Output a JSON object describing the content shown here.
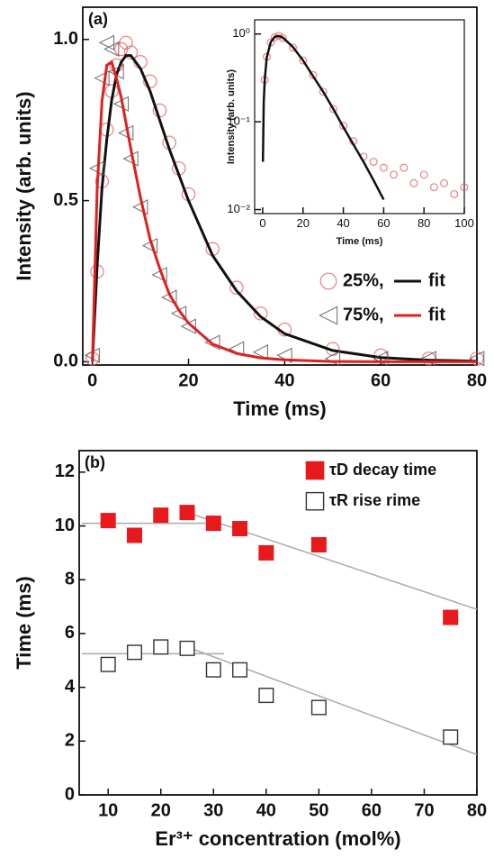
{
  "chart_data": [
    {
      "type": "line",
      "annotation": "(a)",
      "xlabel": "Time (ms)",
      "ylabel": "Intensity (arb. units)",
      "xlim": [
        -2,
        80
      ],
      "ylim": [
        -0.01,
        1.1
      ],
      "xticks": [
        0,
        20,
        40,
        60,
        80
      ],
      "yticks": [
        {
          "value": 0,
          "label": "0.0"
        },
        {
          "value": 0.5,
          "label": "0.5"
        },
        {
          "value": 1,
          "label": "1.0"
        }
      ],
      "legend": "lower right",
      "series": [
        {
          "name": "25%,",
          "color": "#e8605e",
          "marker": "circle",
          "x": [
            0,
            1,
            2,
            3,
            4,
            5,
            6,
            7,
            8,
            10,
            12,
            14,
            16,
            18,
            20,
            25,
            30,
            35,
            40,
            50,
            60,
            70,
            80
          ],
          "values": [
            0.01,
            0.28,
            0.56,
            0.72,
            0.84,
            0.92,
            0.97,
            0.99,
            0.96,
            0.93,
            0.87,
            0.78,
            0.68,
            0.6,
            0.52,
            0.35,
            0.23,
            0.15,
            0.1,
            0.04,
            0.02,
            0.01,
            0.01
          ]
        },
        {
          "name": "fit",
          "color": "#111111",
          "x": [
            0,
            1,
            2,
            3,
            4,
            5,
            6,
            7,
            8,
            10,
            12,
            14,
            16,
            18,
            20,
            25,
            30,
            35,
            40,
            50,
            60,
            70,
            80
          ],
          "values": [
            0,
            0.3,
            0.54,
            0.69,
            0.81,
            0.89,
            0.93,
            0.95,
            0.95,
            0.91,
            0.84,
            0.75,
            0.66,
            0.58,
            0.5,
            0.33,
            0.22,
            0.14,
            0.087,
            0.035,
            0.013,
            0.005,
            0.002
          ]
        },
        {
          "name": "75%,",
          "color": "#555555",
          "marker": "triangle",
          "x": [
            0,
            1,
            2,
            3,
            4,
            5,
            6,
            7,
            8,
            10,
            12,
            14,
            16,
            18,
            20,
            25,
            30,
            35,
            40,
            50,
            60,
            70,
            80
          ],
          "values": [
            0.02,
            0.6,
            0.88,
            0.99,
            0.97,
            0.9,
            0.8,
            0.71,
            0.63,
            0.48,
            0.36,
            0.27,
            0.2,
            0.15,
            0.11,
            0.06,
            0.04,
            0.03,
            0.02,
            0.01,
            0.01,
            0.01,
            0.01
          ]
        },
        {
          "name": "fit",
          "color": "#e02020",
          "x": [
            0,
            1,
            2,
            3,
            4,
            5,
            6,
            7,
            8,
            10,
            12,
            14,
            16,
            18,
            20,
            25,
            30,
            35,
            40,
            50,
            60,
            70,
            80
          ],
          "values": [
            0,
            0.54,
            0.81,
            0.92,
            0.93,
            0.88,
            0.82,
            0.74,
            0.66,
            0.51,
            0.38,
            0.29,
            0.21,
            0.16,
            0.12,
            0.055,
            0.026,
            0.012,
            0.006,
            0.001,
            0,
            0,
            0
          ]
        }
      ]
    },
    {
      "type": "line",
      "xlabel": "Time (ms)",
      "ylabel": "Intensity (arb. units)",
      "yscale": "log",
      "xlim": [
        -4,
        100
      ],
      "ylim": [
        0.009,
        1.45
      ],
      "xticks": [
        0,
        20,
        40,
        60,
        80,
        100
      ],
      "yticks": [
        {
          "value": 0.01,
          "label": "10⁻²"
        },
        {
          "value": 0.1,
          "label": "10⁻¹"
        },
        {
          "value": 1,
          "label": "10⁰"
        }
      ],
      "series": [
        {
          "color": "#e8605e",
          "marker": "circle",
          "x": [
            1,
            2,
            4,
            6,
            8,
            10,
            15,
            20,
            25,
            30,
            35,
            40,
            45,
            50,
            55,
            60,
            65,
            70,
            75,
            80,
            85,
            90,
            95,
            100
          ],
          "values": [
            0.3,
            0.55,
            0.8,
            0.92,
            0.95,
            0.9,
            0.7,
            0.5,
            0.34,
            0.22,
            0.14,
            0.09,
            0.06,
            0.04,
            0.035,
            0.03,
            0.025,
            0.03,
            0.02,
            0.025,
            0.018,
            0.02,
            0.015,
            0.018
          ]
        },
        {
          "color": "#111111",
          "x": [
            0.1,
            0.5,
            1,
            2,
            4,
            6,
            8,
            10,
            15,
            20,
            25,
            30,
            35,
            40,
            45,
            50,
            55,
            60
          ],
          "values": [
            0.035,
            0.164,
            0.3,
            0.54,
            0.81,
            0.93,
            0.95,
            0.91,
            0.71,
            0.5,
            0.33,
            0.22,
            0.14,
            0.087,
            0.055,
            0.035,
            0.0215,
            0.013
          ]
        }
      ]
    },
    {
      "type": "scatter",
      "annotation": "(b)",
      "xlabel": "Er³⁺ concentration (mol%)",
      "ylabel": "Time (ms)",
      "xlim": [
        4.5,
        80
      ],
      "ylim": [
        0,
        12.8
      ],
      "xticks": [
        10,
        20,
        30,
        40,
        50,
        60,
        70,
        80
      ],
      "yticks": [
        0,
        2,
        4,
        6,
        8,
        10,
        12
      ],
      "legend": "upper right",
      "series": [
        {
          "name": "τD decay time",
          "color": "#e8191c",
          "marker": "square-filled",
          "x": [
            10,
            15,
            20,
            25,
            30,
            35,
            40,
            50,
            75
          ],
          "values": [
            10.2,
            9.65,
            10.4,
            10.5,
            10.1,
            9.9,
            9.0,
            9.3,
            6.6
          ]
        },
        {
          "name": "τR rise rime",
          "color": "#333333",
          "marker": "square-open",
          "x": [
            10,
            15,
            20,
            25,
            30,
            35,
            40,
            50,
            75
          ],
          "values": [
            4.85,
            5.3,
            5.5,
            5.45,
            4.65,
            4.65,
            3.7,
            3.25,
            2.15
          ]
        }
      ],
      "trend_lines": {
        "color": "#aaaaaa",
        "lines": [
          {
            "x": [
              5,
              30
            ],
            "values": [
              10.1,
              10.1
            ]
          },
          {
            "x": [
              25,
              80
            ],
            "values": [
              10.5,
              6.9
            ]
          },
          {
            "x": [
              5,
              32
            ],
            "values": [
              5.25,
              5.25
            ]
          },
          {
            "x": [
              25,
              80
            ],
            "values": [
              5.5,
              1.5
            ]
          }
        ]
      }
    }
  ]
}
